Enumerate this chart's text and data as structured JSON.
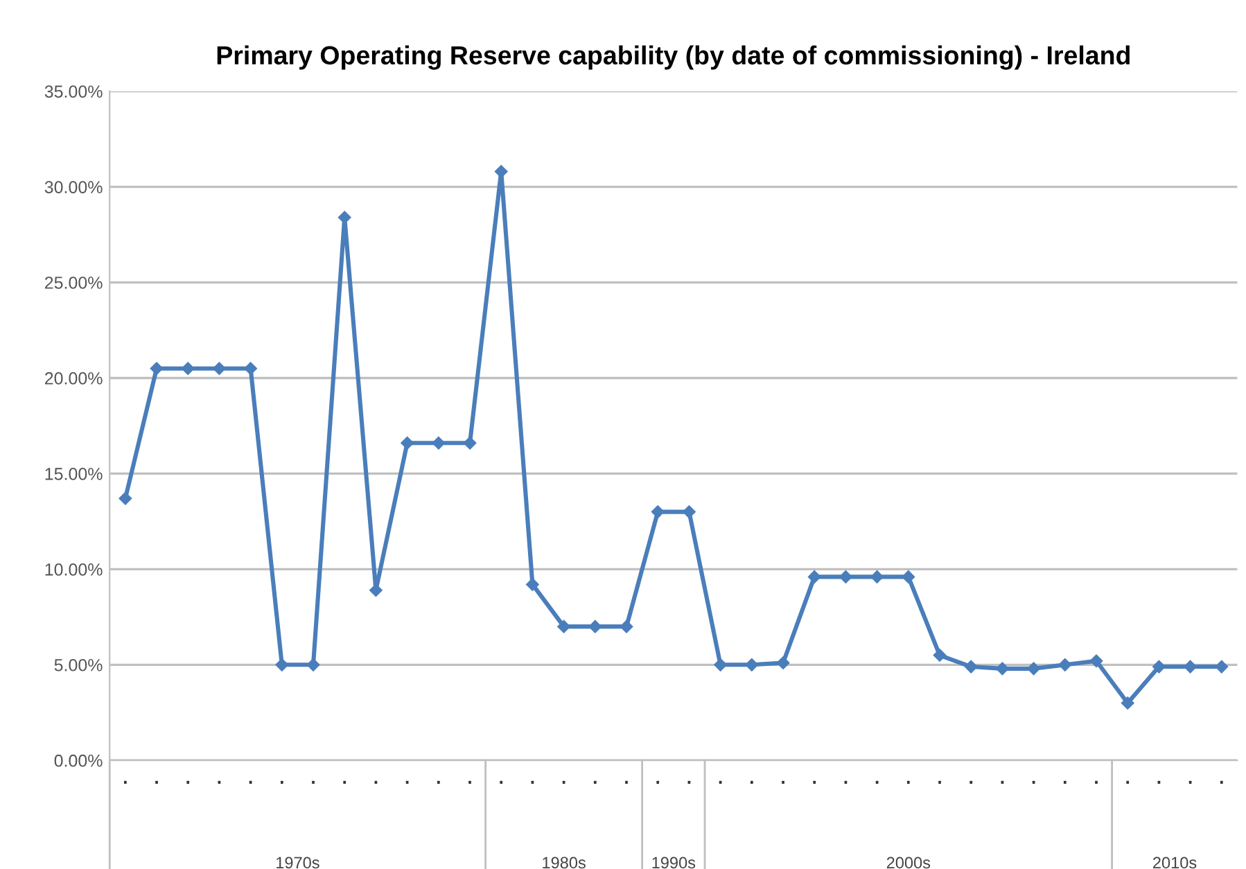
{
  "chart_data": {
    "type": "line",
    "title": "Primary Operating Reserve capability (by date of commissioning) - Ireland",
    "categories": [
      ".",
      ".",
      ".",
      ".",
      ".",
      ".",
      ".",
      ".",
      ".",
      ".",
      ".",
      ".",
      ".",
      ".",
      ".",
      ".",
      ".",
      ".",
      ".",
      ".",
      ".",
      ".",
      ".",
      ".",
      ".",
      ".",
      ".",
      ".",
      ".",
      ".",
      ".",
      ".",
      ".",
      ".",
      ".",
      "."
    ],
    "series": [
      {
        "color": "#4a7ebb",
        "values": [
          13.7,
          20.5,
          20.5,
          20.5,
          20.5,
          5.0,
          5.0,
          28.4,
          8.9,
          16.6,
          16.6,
          16.6,
          30.8,
          9.2,
          7.0,
          7.0,
          7.0,
          13.0,
          13.0,
          5.0,
          5.0,
          5.1,
          9.6,
          9.6,
          9.6,
          9.6,
          5.5,
          4.9,
          4.8,
          4.8,
          5.0,
          5.2,
          3.0,
          4.9,
          4.9,
          4.9
        ]
      }
    ],
    "ylim": [
      0,
      35
    ],
    "yticks": [
      {
        "value": 0,
        "label": "0.00%"
      },
      {
        "value": 5,
        "label": "5.00%"
      },
      {
        "value": 10,
        "label": "10.00%"
      },
      {
        "value": 15,
        "label": "15.00%"
      },
      {
        "value": 20,
        "label": "20.00%"
      },
      {
        "value": 25,
        "label": "25.00%"
      },
      {
        "value": 30,
        "label": "30.00%"
      },
      {
        "value": 35,
        "label": "35.00%"
      }
    ],
    "annotations": [
      "1970s",
      "1980s",
      "1990s",
      "2000s",
      "2010s"
    ],
    "grid": "y",
    "legend": false,
    "marker": "diamond",
    "line_style": "solid"
  }
}
